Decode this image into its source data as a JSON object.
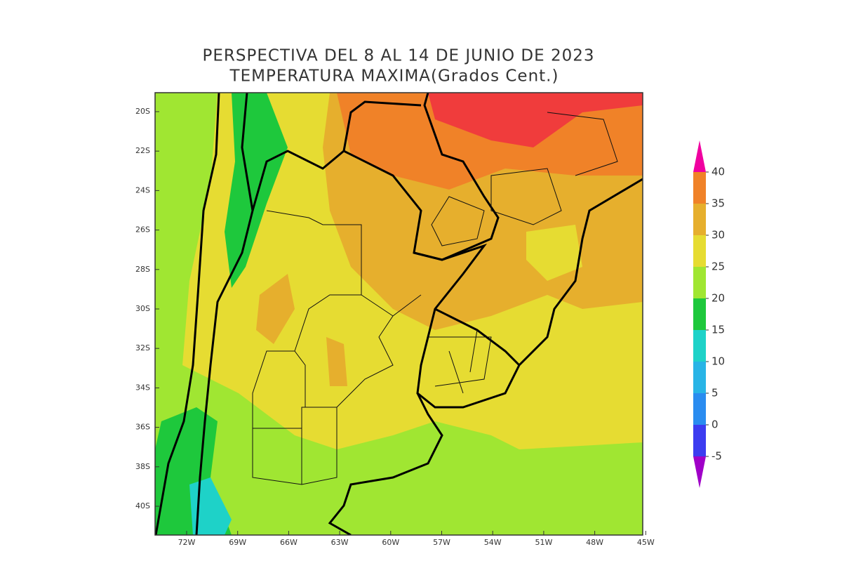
{
  "title": [
    "PERSPECTIVA DEL 8 AL 14 DE JUNIO DE 2023",
    "TEMPERATURA MAXIMA(Grados Cent.)"
  ],
  "lat_labels": [
    "20S",
    "22S",
    "24S",
    "26S",
    "28S",
    "30S",
    "32S",
    "34S",
    "36S",
    "38S",
    "40S"
  ],
  "lon_labels": [
    "72W",
    "69W",
    "66W",
    "63W",
    "60W",
    "57W",
    "54W",
    "51W",
    "48W",
    "45W"
  ],
  "legend": {
    "levels": [
      -5,
      0,
      5,
      10,
      15,
      20,
      25,
      30,
      35,
      40
    ],
    "colors": [
      "#a000c8",
      "#3c3cf0",
      "#2a8cf0",
      "#28b4e6",
      "#1ed2c8",
      "#1ec83c",
      "#a0e632",
      "#e6dc32",
      "#e6af2d",
      "#f08228",
      "#f03c3c",
      "#f000a0"
    ]
  }
}
